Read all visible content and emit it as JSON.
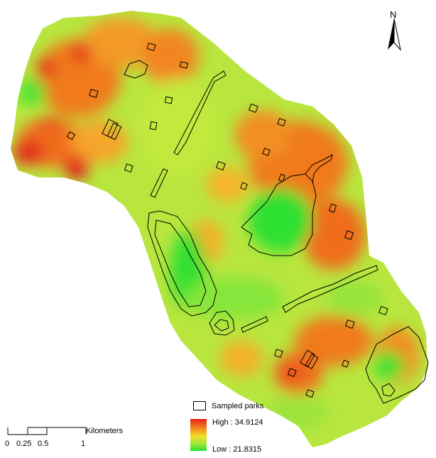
{
  "north_arrow": {
    "label": "N",
    "icon": "north-arrow-icon"
  },
  "legend": {
    "parks_label": "Sampled parks",
    "high_label": "High : 34.9124",
    "low_label": "Low : 21.8315",
    "colors": {
      "high": "#e8201a",
      "mid_high": "#f58a1e",
      "mid": "#f2e22c",
      "mid_low": "#9ee43a",
      "low": "#25e22e"
    }
  },
  "scale_bar": {
    "unit": "Kilometers",
    "ticks": [
      "0",
      "0.25",
      "0.5",
      "1"
    ]
  }
}
